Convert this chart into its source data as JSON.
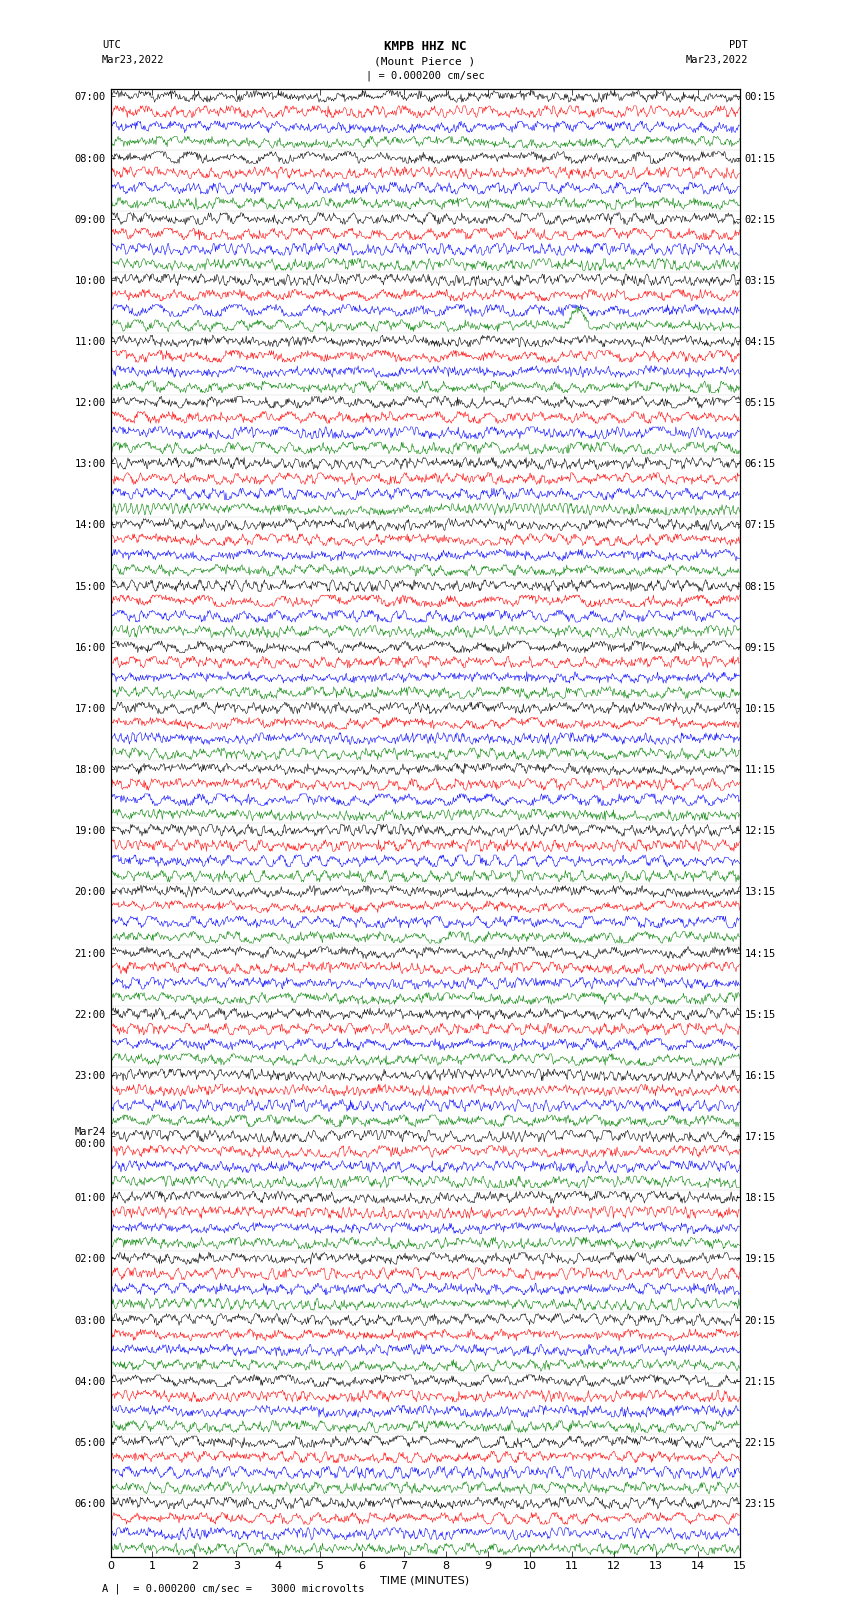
{
  "title_line1": "KMPB HHZ NC",
  "title_line2": "(Mount Pierce )",
  "title_line3": "| = 0.000200 cm/sec",
  "left_header_line1": "UTC",
  "left_header_line2": "Mar23,2022",
  "right_header_line1": "PDT",
  "right_header_line2": "Mar23,2022",
  "xlabel": "TIME (MINUTES)",
  "bottom_label": "A |  = 0.000200 cm/sec =   3000 microvolts",
  "left_times": [
    "07:00",
    "08:00",
    "09:00",
    "10:00",
    "11:00",
    "12:00",
    "13:00",
    "14:00",
    "15:00",
    "16:00",
    "17:00",
    "18:00",
    "19:00",
    "20:00",
    "21:00",
    "22:00",
    "23:00",
    "Mar24\n00:00",
    "01:00",
    "02:00",
    "03:00",
    "04:00",
    "05:00",
    "06:00"
  ],
  "right_times": [
    "00:15",
    "01:15",
    "02:15",
    "03:15",
    "04:15",
    "05:15",
    "06:15",
    "07:15",
    "08:15",
    "09:15",
    "10:15",
    "11:15",
    "12:15",
    "13:15",
    "14:15",
    "15:15",
    "16:15",
    "17:15",
    "18:15",
    "19:15",
    "20:15",
    "21:15",
    "22:15",
    "23:15"
  ],
  "n_rows": 24,
  "traces_per_row": 4,
  "colors": [
    "black",
    "red",
    "blue",
    "green"
  ],
  "trace_amplitude": 0.38,
  "noise_scale": 0.15,
  "minutes_per_row": 15,
  "bg_color": "white",
  "plot_bg": "white",
  "fontsize_labels": 7.5,
  "fontsize_title": 9,
  "fontsize_axis": 8
}
